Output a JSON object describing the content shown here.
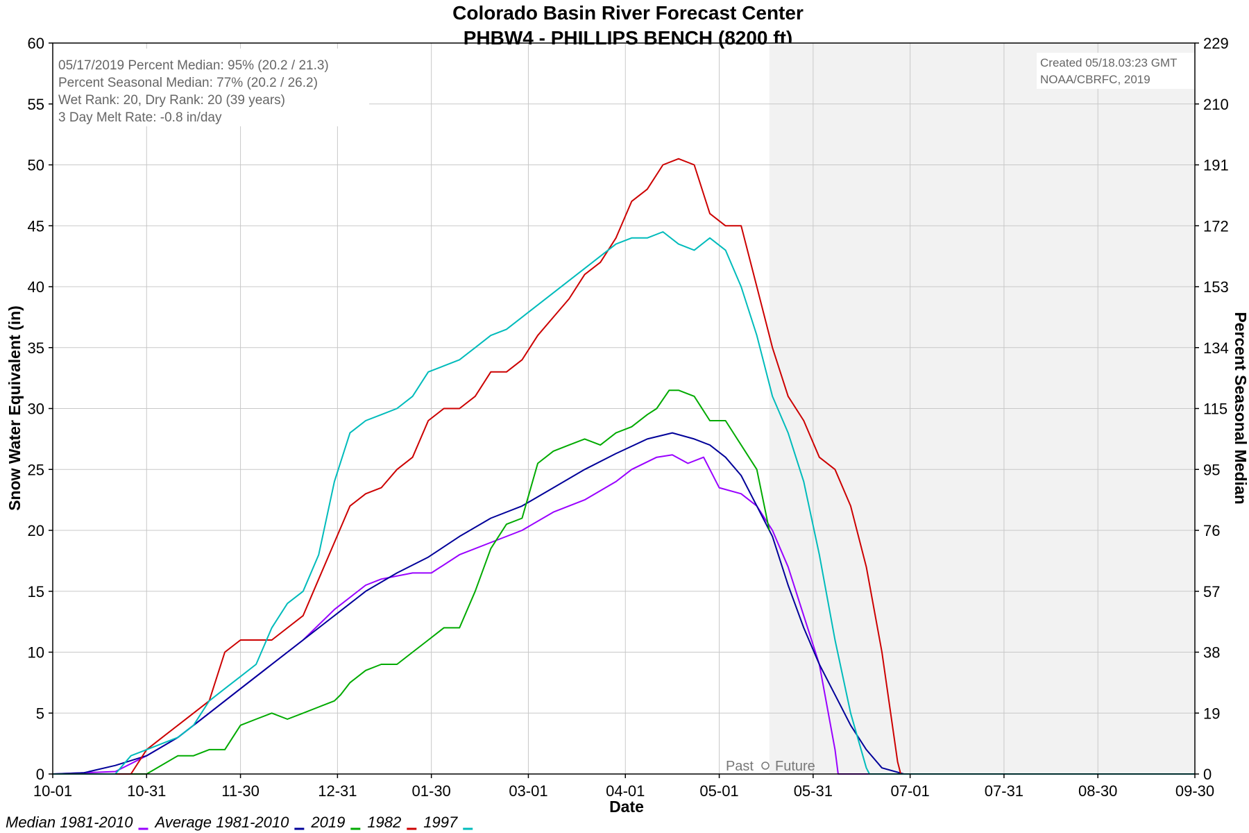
{
  "chart_data": {
    "type": "line",
    "title": "Colorado Basin River Forecast Center",
    "subtitle": "PHBW4 - PHILLIPS BENCH (8200 ft)",
    "xlabel": "Date",
    "ylabel": "Snow Water Equivalent (in)",
    "y2label": "Percent Seasonal Median",
    "ylim": [
      0,
      60
    ],
    "yticks": [
      "0",
      "5",
      "10",
      "15",
      "20",
      "25",
      "30",
      "35",
      "40",
      "45",
      "50",
      "55",
      "60"
    ],
    "y2ticks": [
      "0",
      "19",
      "38",
      "57",
      "76",
      "95",
      "115",
      "134",
      "153",
      "172",
      "191",
      "210",
      "229"
    ],
    "xticks": [
      "10-01",
      "10-31",
      "11-30",
      "12-31",
      "01-30",
      "03-01",
      "04-01",
      "05-01",
      "05-31",
      "07-01",
      "07-31",
      "08-30",
      "09-30"
    ],
    "xtick_days": [
      0,
      30,
      60,
      91,
      121,
      152,
      183,
      213,
      243,
      274,
      304,
      334,
      365
    ],
    "xlim_days": [
      0,
      365
    ],
    "grid": true,
    "forecast_start_day": 229,
    "past_label": "Past",
    "future_label": "Future",
    "info_lines": [
      "05/17/2019 Percent Median: 95% (20.2 / 21.3)",
      "Percent Seasonal Median: 77% (20.2 / 26.2)",
      "Wet Rank: 20, Dry Rank: 20  (39 years)",
      "3 Day Melt Rate: -0.8 in/day"
    ],
    "credit_lines": [
      "Created 05/18.03:23 GMT",
      "NOAA/CBRFC, 2019"
    ],
    "series": [
      {
        "name": "Median 1981-2010",
        "color": "#9900ff",
        "x": [
          0,
          20,
          30,
          40,
          50,
          60,
          70,
          80,
          90,
          100,
          105,
          115,
          121,
          130,
          140,
          150,
          160,
          170,
          180,
          185,
          193,
          198,
          203,
          208,
          213,
          220,
          225,
          230,
          235,
          240,
          245,
          250,
          251,
          365
        ],
        "y": [
          0,
          0.2,
          1.5,
          3,
          5,
          7,
          9,
          11,
          13.5,
          15.5,
          16,
          16.5,
          16.5,
          18,
          19,
          20,
          21.5,
          22.5,
          24,
          25,
          26,
          26.2,
          25.5,
          26,
          23.5,
          23,
          22,
          20,
          17,
          13,
          9,
          2,
          0,
          0
        ]
      },
      {
        "name": "Average 1981-2010",
        "color": "#000099",
        "x": [
          0,
          10,
          20,
          30,
          40,
          50,
          60,
          70,
          80,
          90,
          100,
          110,
          120,
          130,
          140,
          150,
          160,
          170,
          180,
          190,
          198,
          205,
          210,
          215,
          220,
          225,
          230,
          235,
          240,
          245,
          250,
          255,
          260,
          265,
          272,
          365
        ],
        "y": [
          0,
          0.1,
          0.7,
          1.5,
          3,
          5,
          7,
          9,
          11,
          13,
          15,
          16.5,
          17.8,
          19.5,
          21,
          22,
          23.5,
          25,
          26.3,
          27.5,
          28,
          27.5,
          27,
          26,
          24.5,
          22,
          19.5,
          15.5,
          12,
          9,
          6.5,
          4,
          2,
          0.5,
          0,
          0
        ]
      },
      {
        "name": "2019",
        "color": "#00aa00",
        "x": [
          0,
          30,
          40,
          45,
          50,
          55,
          60,
          65,
          70,
          75,
          80,
          85,
          90,
          92,
          95,
          100,
          105,
          110,
          115,
          120,
          125,
          130,
          135,
          140,
          145,
          150,
          155,
          160,
          165,
          170,
          175,
          180,
          185,
          190,
          193,
          197,
          200,
          205,
          210,
          215,
          220,
          225,
          229
        ],
        "y": [
          0,
          0,
          1.5,
          1.5,
          2,
          2,
          4,
          4.5,
          5,
          4.5,
          5,
          5.5,
          6,
          6.5,
          7.5,
          8.5,
          9,
          9,
          10,
          11,
          12,
          12,
          15,
          18.5,
          20.5,
          21,
          25.5,
          26.5,
          27,
          27.5,
          27,
          28,
          28.5,
          29.5,
          30,
          31.5,
          31.5,
          31,
          29,
          29,
          27,
          25,
          20
        ]
      },
      {
        "name": "1982",
        "color": "#cc0000",
        "x": [
          0,
          25,
          30,
          35,
          40,
          45,
          50,
          55,
          60,
          65,
          70,
          80,
          85,
          90,
          95,
          100,
          105,
          110,
          115,
          120,
          125,
          130,
          135,
          140,
          145,
          150,
          155,
          160,
          165,
          170,
          175,
          180,
          185,
          190,
          195,
          200,
          205,
          210,
          215,
          220,
          225,
          230,
          235,
          240,
          245,
          250,
          255,
          260,
          265,
          270,
          271,
          365
        ],
        "y": [
          0,
          0,
          2,
          3,
          4,
          5,
          6,
          10,
          11,
          11,
          11,
          13,
          16,
          19,
          22,
          23,
          23.5,
          25,
          26,
          29,
          30,
          30,
          31,
          33,
          33,
          34,
          36,
          37.5,
          39,
          41,
          42,
          44,
          47,
          48,
          50,
          50.5,
          50,
          46,
          45,
          45,
          40,
          35,
          31,
          29,
          26,
          25,
          22,
          17,
          10,
          1,
          0,
          0
        ]
      },
      {
        "name": "1997",
        "color": "#00bbbb",
        "x": [
          0,
          20,
          25,
          30,
          35,
          40,
          45,
          50,
          55,
          60,
          65,
          70,
          75,
          80,
          85,
          90,
          95,
          100,
          105,
          110,
          115,
          120,
          125,
          130,
          135,
          140,
          145,
          150,
          155,
          160,
          165,
          170,
          175,
          180,
          185,
          190,
          195,
          200,
          205,
          210,
          215,
          220,
          225,
          230,
          235,
          240,
          245,
          250,
          255,
          260,
          261,
          365
        ],
        "y": [
          0,
          0,
          1.5,
          2,
          2.5,
          3,
          4,
          6,
          7,
          8,
          9,
          12,
          14,
          15,
          18,
          24,
          28,
          29,
          29.5,
          30,
          31,
          33,
          33.5,
          34,
          35,
          36,
          36.5,
          37.5,
          38.5,
          39.5,
          40.5,
          41.5,
          42.5,
          43.5,
          44,
          44,
          44.5,
          43.5,
          43,
          44,
          43,
          40,
          36,
          31,
          28,
          24,
          18,
          11,
          5,
          0.5,
          0,
          0
        ]
      }
    ]
  }
}
